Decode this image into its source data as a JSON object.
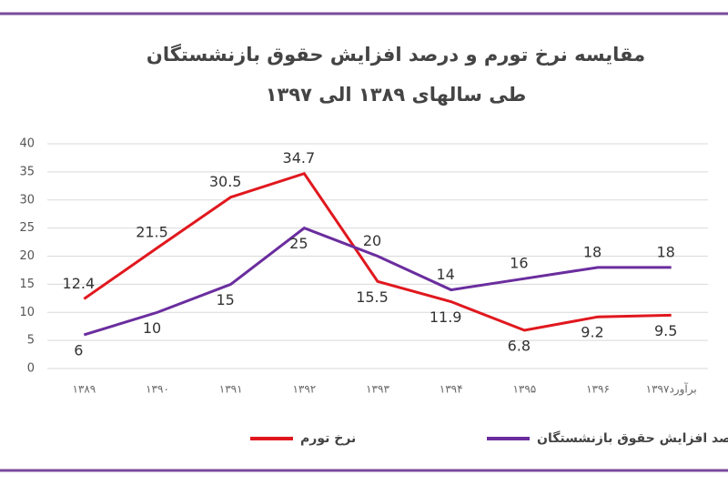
{
  "chart_data": {
    "type": "line",
    "title": "مقایسه نرخ تورم و درصد افزایش حقوق بازنشستگان طی سالهای ۱۳۸۹ الی ۱۳۹۷",
    "categories": [
      "۱۳۸۹",
      "۱۳۹۰",
      "۱۳۹۱",
      "۱۳۹۲",
      "۱۳۹۳",
      "۱۳۹۴",
      "۱۳۹۵",
      "۱۳۹۶",
      "برآورد۱۳۹۷"
    ],
    "series": [
      {
        "name": "نرخ تورم",
        "color": "#e0181e",
        "values": [
          12.4,
          21.5,
          30.5,
          34.7,
          15.5,
          11.9,
          6.8,
          9.2,
          9.5
        ]
      },
      {
        "name": "درصد افزایش حقوق بازنشستگان",
        "color": "#6a2d9e",
        "values": [
          6,
          10,
          15,
          25,
          20,
          14,
          16,
          18,
          18
        ]
      }
    ],
    "ylim": [
      0,
      40
    ],
    "yticks": [
      0,
      5,
      10,
      15,
      20,
      25,
      30,
      35,
      40
    ],
    "grid": true
  }
}
